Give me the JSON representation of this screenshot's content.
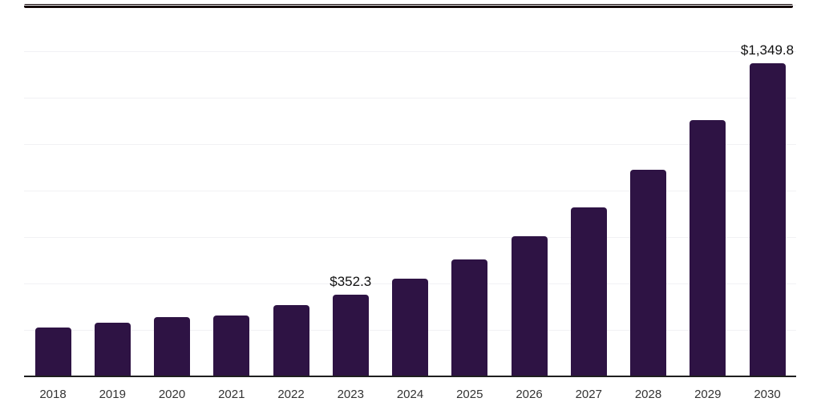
{
  "page": {
    "background_color": "#ffffff",
    "top_bar_color": "#150808"
  },
  "chart_data": {
    "type": "bar",
    "title": "",
    "xlabel": "",
    "ylabel": "",
    "categories": [
      "2018",
      "2019",
      "2020",
      "2021",
      "2022",
      "2023",
      "2024",
      "2025",
      "2026",
      "2027",
      "2028",
      "2029",
      "2030"
    ],
    "values": [
      210.7,
      231.4,
      255.6,
      262.5,
      307.4,
      352.3,
      421.4,
      504.3,
      604.5,
      728.8,
      891.1,
      1101.8,
      1349.8
    ],
    "value_labels": [
      "",
      "",
      "",
      "",
      "",
      "$352.3",
      "",
      "",
      "",
      "",
      "",
      "",
      "$1,349.8"
    ],
    "bar_color": "#2e1344",
    "grid": true,
    "gridline_color": "#f1f1f4",
    "axis_line_color": "#1f1f1f",
    "label_color": "#333333",
    "value_label_color": "#111111",
    "ylim": [
      0,
      1600
    ],
    "grid_step": 200,
    "legend": false
  }
}
